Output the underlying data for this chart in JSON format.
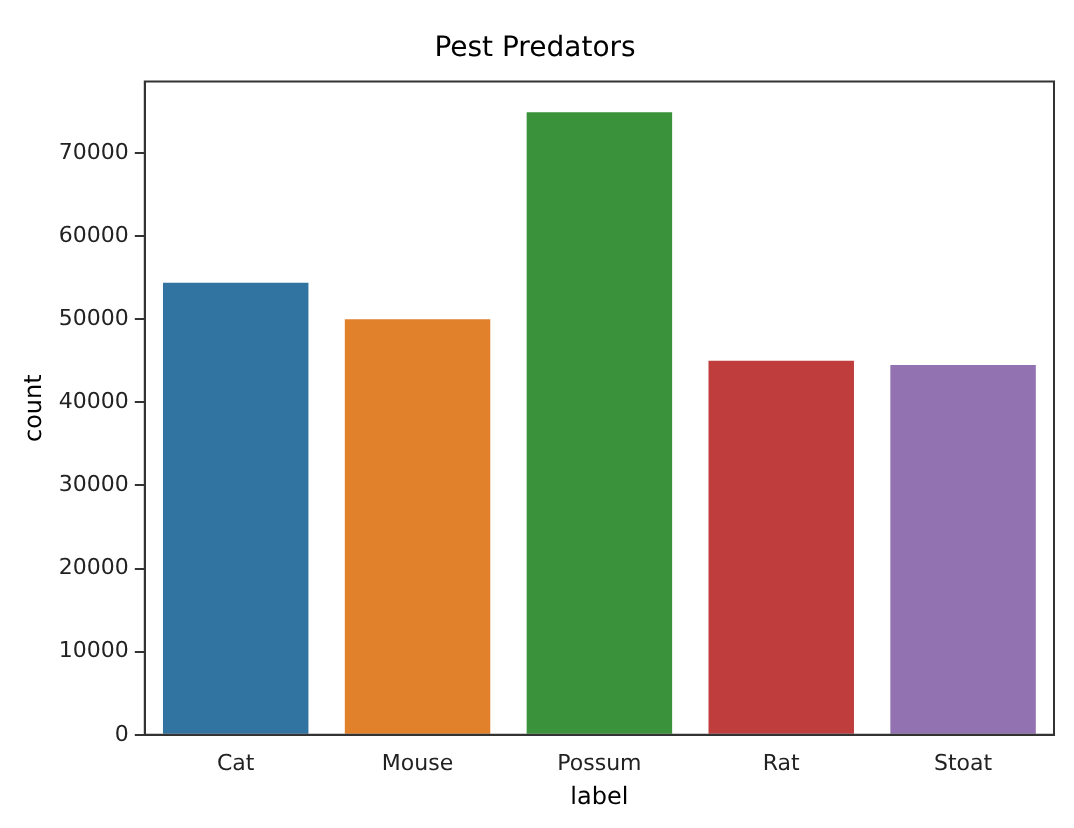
{
  "chart_data": {
    "type": "bar",
    "title": "Pest Predators",
    "xlabel": "label",
    "ylabel": "count",
    "categories": [
      "Cat",
      "Mouse",
      "Possum",
      "Rat",
      "Stoat"
    ],
    "values": [
      54400,
      50000,
      74900,
      45000,
      44500
    ],
    "colors": [
      "#3274a1",
      "#e1812c",
      "#3a923a",
      "#c03d3e",
      "#9372b2"
    ],
    "ylim": [
      0,
      78600
    ],
    "yticks": [
      0,
      10000,
      20000,
      30000,
      40000,
      50000,
      60000,
      70000
    ],
    "grid": false,
    "legend": false
  }
}
